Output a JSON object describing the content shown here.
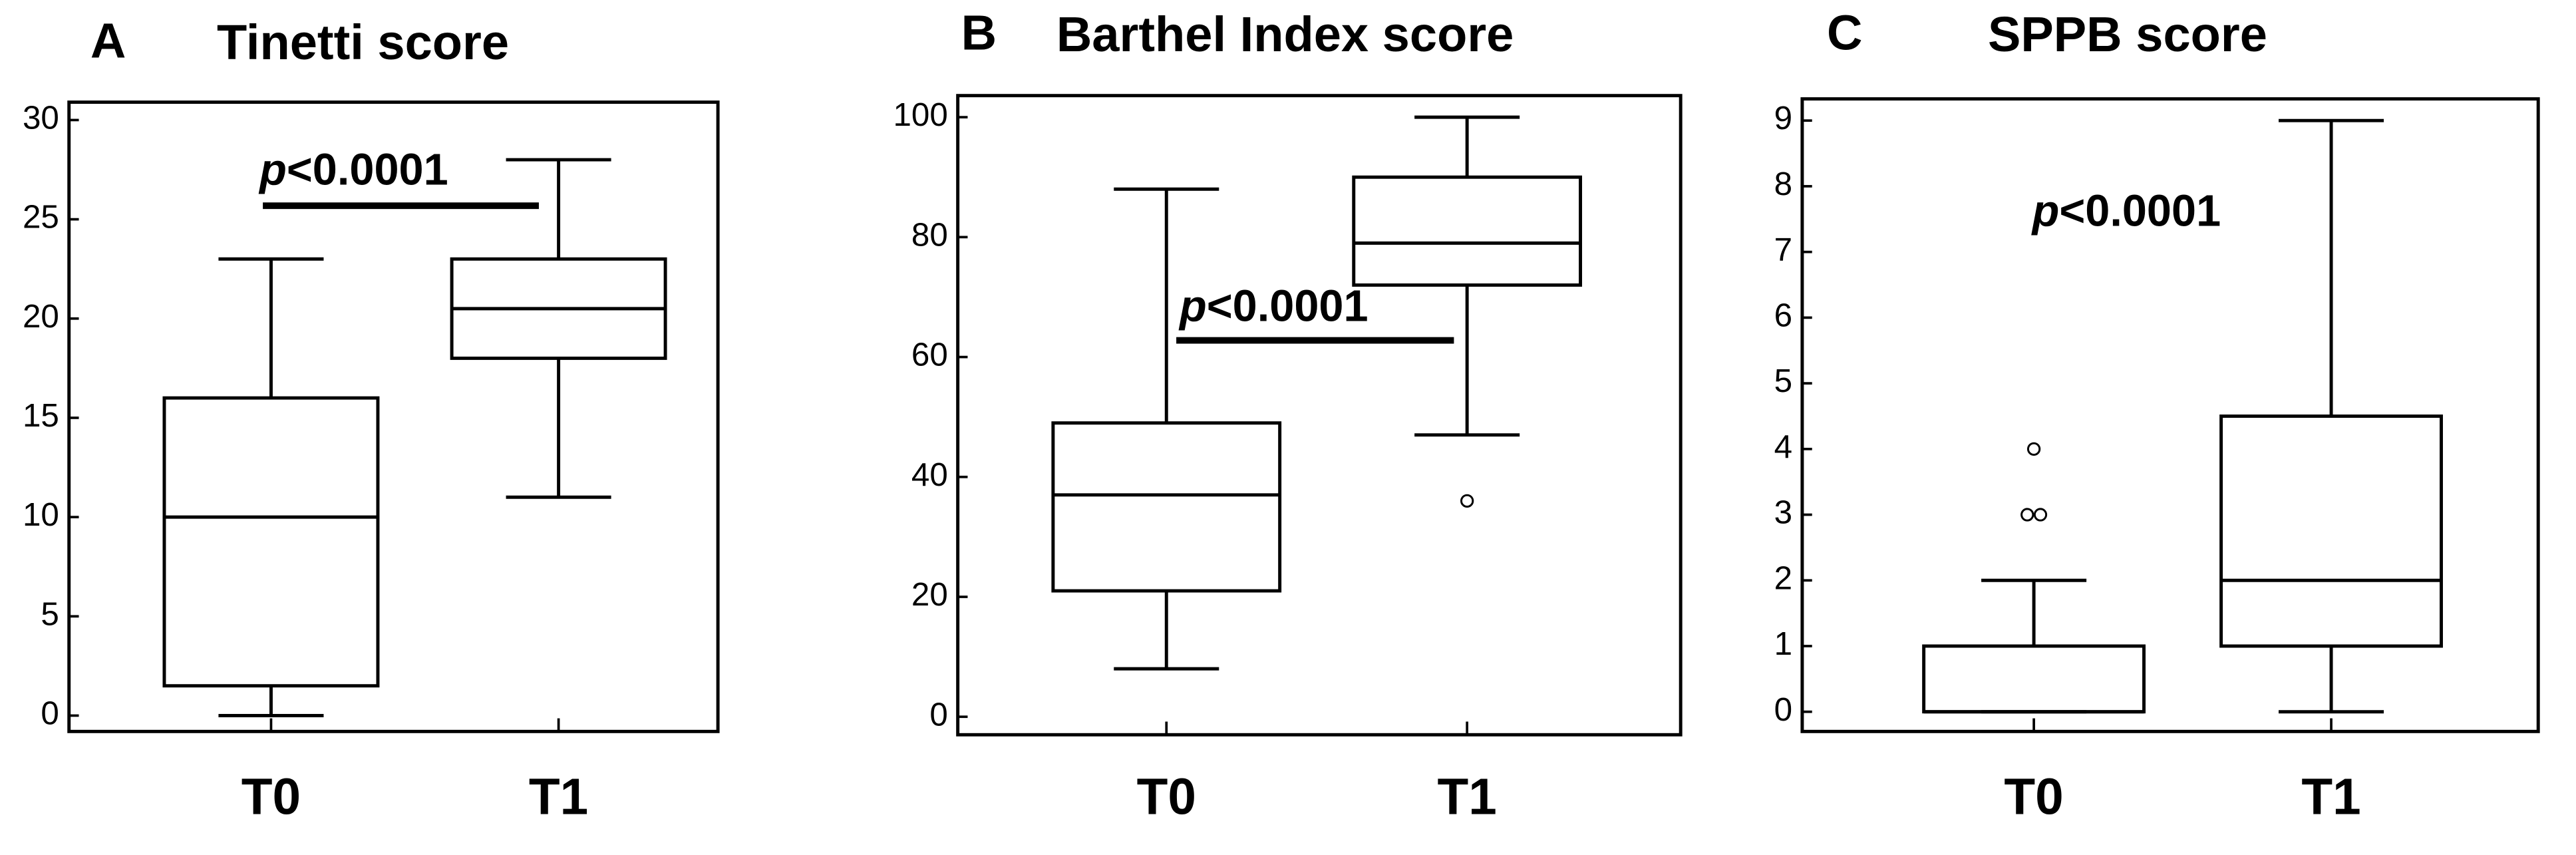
{
  "chart_data": [
    {
      "type": "box",
      "label": "A",
      "title": "Tinetti score",
      "categories": [
        "T0",
        "T1"
      ],
      "boxes": [
        {
          "min": 0,
          "q1": 1.5,
          "median": 10,
          "q3": 16,
          "max": 23,
          "outliers": []
        },
        {
          "min": 11,
          "q1": 18,
          "median": 20.5,
          "q3": 23,
          "max": 28,
          "outliers": []
        }
      ],
      "ylim": [
        -0.8,
        30.9
      ],
      "yticks": [
        0,
        5,
        10,
        15,
        20,
        25,
        30
      ],
      "annotation": "p<0.0001"
    },
    {
      "type": "box",
      "label": "B",
      "title": "Barthel Index score",
      "categories": [
        "T0",
        "T1"
      ],
      "boxes": [
        {
          "min": 8,
          "q1": 21,
          "median": 37,
          "q3": 49,
          "max": 88,
          "outliers": []
        },
        {
          "min": 47,
          "q1": 72,
          "median": 79,
          "q3": 90,
          "max": 100,
          "outliers": [
            36
          ]
        }
      ],
      "ylim": [
        -3,
        103.6
      ],
      "yticks": [
        0,
        20,
        40,
        60,
        80,
        100
      ],
      "annotation": "p<0.0001"
    },
    {
      "type": "box",
      "label": "C",
      "title": "SPPB score",
      "categories": [
        "T0",
        "T1"
      ],
      "boxes": [
        {
          "min": 0,
          "q1": 0,
          "median": 0,
          "q3": 1,
          "max": 2,
          "outliers": [
            4,
            3,
            3
          ]
        },
        {
          "min": 0,
          "q1": 1,
          "median": 2,
          "q3": 4.5,
          "max": 9,
          "outliers": []
        }
      ],
      "ylim": [
        -0.3,
        9.33
      ],
      "yticks": [
        0,
        1,
        2,
        3,
        4,
        5,
        6,
        7,
        8,
        9
      ],
      "annotation": "p<0.0001"
    }
  ]
}
